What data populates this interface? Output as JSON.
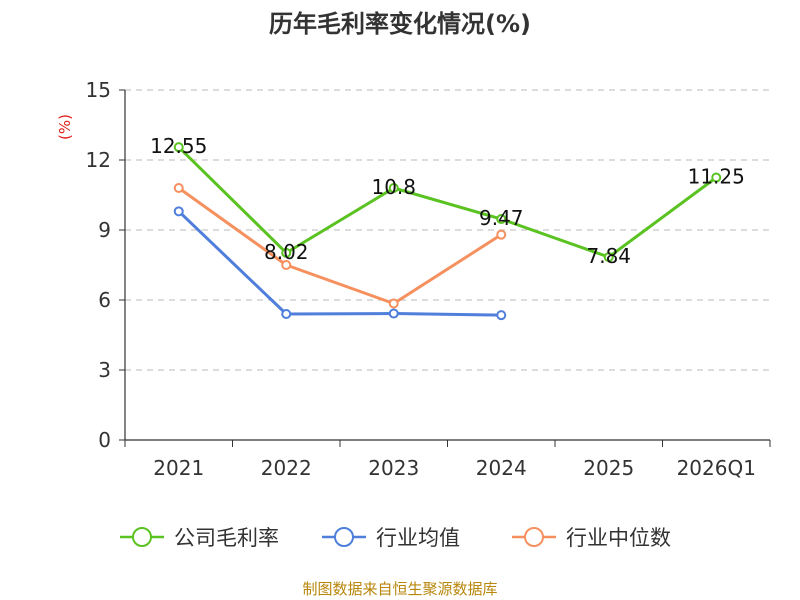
{
  "chart_data": {
    "type": "line",
    "title": "历年毛利率变化情况(%)",
    "unit_label": "(%)",
    "categories": [
      "2021",
      "2022",
      "2023",
      "2024",
      "2025",
      "2026Q1"
    ],
    "ylim": [
      0,
      15
    ],
    "yticks": [
      "0",
      "3",
      "6",
      "9",
      "12",
      "15"
    ],
    "grid": true,
    "legend_position": "bottom",
    "series": [
      {
        "name": "公司毛利率",
        "color": "#5ac221",
        "values": [
          12.55,
          8.02,
          10.8,
          9.47,
          7.84,
          11.25
        ],
        "labels": [
          "12.55",
          "8.02",
          "10.8",
          "9.47",
          "7.84",
          "11.25"
        ]
      },
      {
        "name": "行业均值",
        "color": "#4f7fdb",
        "values": [
          9.8,
          5.4,
          5.42,
          5.35,
          null,
          null
        ],
        "labels": []
      },
      {
        "name": "行业中位数",
        "color": "#f6905e",
        "values": [
          10.8,
          7.5,
          5.85,
          8.8,
          null,
          null
        ],
        "labels": []
      }
    ],
    "source": "制图数据来自恒生聚源数据库"
  }
}
